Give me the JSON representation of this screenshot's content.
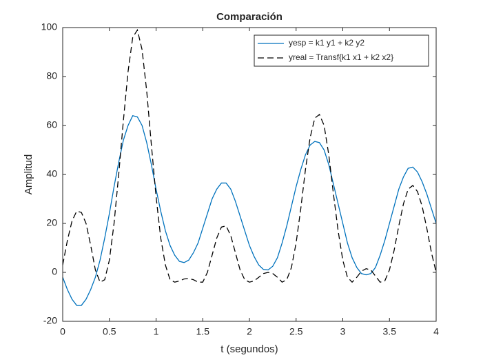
{
  "chart_data": {
    "type": "line",
    "title": "Comparación",
    "xlabel": "t (segundos)",
    "ylabel": "Amplitud",
    "x": [
      0,
      0.05,
      0.1,
      0.15,
      0.2,
      0.25,
      0.3,
      0.35,
      0.4,
      0.45,
      0.5,
      0.55,
      0.6,
      0.65,
      0.7,
      0.75,
      0.8,
      0.85,
      0.9,
      0.95,
      1,
      1.05,
      1.1,
      1.15,
      1.2,
      1.25,
      1.3,
      1.35,
      1.4,
      1.45,
      1.5,
      1.55,
      1.6,
      1.65,
      1.7,
      1.75,
      1.8,
      1.85,
      1.9,
      1.95,
      2,
      2.05,
      2.1,
      2.15,
      2.2,
      2.25,
      2.3,
      2.35,
      2.4,
      2.45,
      2.5,
      2.55,
      2.6,
      2.65,
      2.7,
      2.75,
      2.8,
      2.85,
      2.9,
      2.95,
      3,
      3.05,
      3.1,
      3.15,
      3.2,
      3.25,
      3.3,
      3.35,
      3.4,
      3.45,
      3.5,
      3.55,
      3.6,
      3.65,
      3.7,
      3.75,
      3.8,
      3.85,
      3.9,
      3.95,
      4
    ],
    "series": [
      {
        "name": "yesp = k1 y1 + k2 y2",
        "color": "#0072bd",
        "dash": "solid",
        "values": [
          -2,
          -7,
          -11,
          -13.5,
          -13.5,
          -11,
          -7,
          -2,
          5,
          14,
          24,
          35,
          45,
          54,
          60,
          64,
          63.5,
          60,
          53,
          44,
          34,
          25,
          17,
          11,
          7,
          4.5,
          4,
          5,
          8,
          12,
          18,
          24,
          30,
          34,
          36.5,
          36.5,
          34,
          29,
          23,
          17,
          11,
          6.5,
          3,
          1.2,
          1,
          2.5,
          6,
          12,
          19,
          27,
          35,
          42,
          48,
          52,
          53.5,
          53,
          50,
          44,
          36,
          28,
          20,
          12,
          6,
          2,
          -0.5,
          -1,
          -0.5,
          2,
          7,
          13,
          20,
          27,
          34,
          39,
          42.5,
          43,
          41,
          37,
          32,
          26,
          20
        ]
      },
      {
        "name": "yreal = Transf{k1 x1 + k2 x2}",
        "color": "#000000",
        "dash": "dashed",
        "values": [
          3,
          13,
          21,
          25,
          24.5,
          20,
          11,
          1,
          -4,
          -3,
          5,
          20,
          40,
          62,
          82,
          96,
          99,
          91,
          74,
          52,
          31,
          14,
          3,
          -3,
          -4,
          -3.5,
          -2.7,
          -2.5,
          -3,
          -4,
          -4,
          0,
          7,
          14,
          18.5,
          19,
          15,
          8,
          1,
          -3,
          -4,
          -3.5,
          -2,
          -0.5,
          0,
          -0.5,
          -2,
          -4,
          -3,
          2,
          12,
          26,
          42,
          55,
          63,
          64.5,
          60,
          48,
          32,
          17,
          5,
          -2,
          -4,
          -2,
          0.5,
          1.5,
          1,
          -1.5,
          -4,
          -3.5,
          1,
          9,
          19,
          28,
          34,
          35.5,
          33,
          27,
          18,
          8,
          0
        ]
      }
    ],
    "xlim": [
      0,
      4
    ],
    "xticks": [
      0,
      0.5,
      1,
      1.5,
      2,
      2.5,
      3,
      3.5,
      4
    ],
    "ylim": [
      -20,
      100
    ],
    "yticks": [
      -20,
      0,
      20,
      40,
      60,
      80,
      100
    ],
    "legend": "northeast",
    "grid": false
  }
}
